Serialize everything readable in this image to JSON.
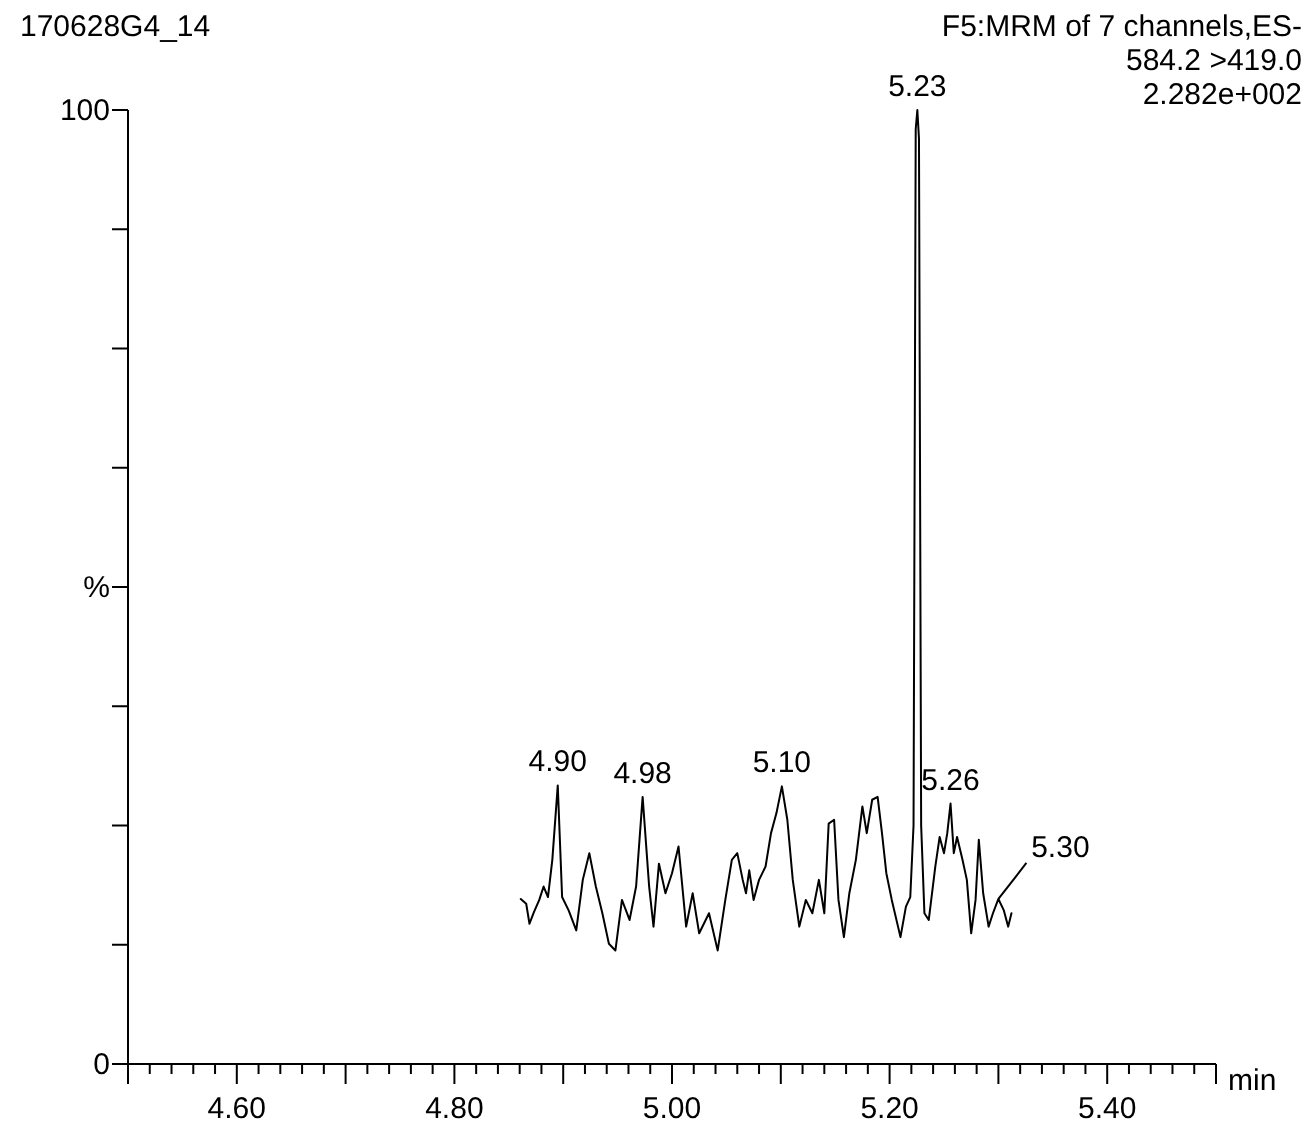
{
  "chart_data": {
    "type": "line",
    "title": "170628G4_14",
    "xlabel": "min",
    "xlim": [
      4.5,
      5.5
    ],
    "ylim": [
      0,
      100
    ],
    "xticks": [
      {
        "value": 4.5,
        "label": null
      },
      {
        "value": 4.52,
        "label": null
      },
      {
        "value": 4.54,
        "label": null
      },
      {
        "value": 4.56,
        "label": null
      },
      {
        "value": 4.58,
        "label": null
      },
      {
        "value": 4.6,
        "label": "4.60"
      },
      {
        "value": 4.62,
        "label": null
      },
      {
        "value": 4.64,
        "label": null
      },
      {
        "value": 4.66,
        "label": null
      },
      {
        "value": 4.68,
        "label": null
      },
      {
        "value": 4.7,
        "label": null
      },
      {
        "value": 4.72,
        "label": null
      },
      {
        "value": 4.74,
        "label": null
      },
      {
        "value": 4.76,
        "label": null
      },
      {
        "value": 4.78,
        "label": null
      },
      {
        "value": 4.8,
        "label": "4.80"
      },
      {
        "value": 4.82,
        "label": null
      },
      {
        "value": 4.84,
        "label": null
      },
      {
        "value": 4.86,
        "label": null
      },
      {
        "value": 4.88,
        "label": null
      },
      {
        "value": 4.9,
        "label": null
      },
      {
        "value": 4.92,
        "label": null
      },
      {
        "value": 4.94,
        "label": null
      },
      {
        "value": 4.96,
        "label": null
      },
      {
        "value": 4.98,
        "label": null
      },
      {
        "value": 5.0,
        "label": "5.00"
      },
      {
        "value": 5.02,
        "label": null
      },
      {
        "value": 5.04,
        "label": null
      },
      {
        "value": 5.06,
        "label": null
      },
      {
        "value": 5.08,
        "label": null
      },
      {
        "value": 5.1,
        "label": null
      },
      {
        "value": 5.12,
        "label": null
      },
      {
        "value": 5.14,
        "label": null
      },
      {
        "value": 5.16,
        "label": null
      },
      {
        "value": 5.18,
        "label": null
      },
      {
        "value": 5.2,
        "label": "5.20"
      },
      {
        "value": 5.22,
        "label": null
      },
      {
        "value": 5.24,
        "label": null
      },
      {
        "value": 5.26,
        "label": null
      },
      {
        "value": 5.28,
        "label": null
      },
      {
        "value": 5.3,
        "label": null
      },
      {
        "value": 5.32,
        "label": null
      },
      {
        "value": 5.34,
        "label": null
      },
      {
        "value": 5.36,
        "label": null
      },
      {
        "value": 5.38,
        "label": null
      },
      {
        "value": 5.4,
        "label": "5.40"
      },
      {
        "value": 5.42,
        "label": null
      },
      {
        "value": 5.44,
        "label": null
      },
      {
        "value": 5.46,
        "label": null
      },
      {
        "value": 5.48,
        "label": null
      },
      {
        "value": 5.5,
        "label": null
      }
    ],
    "yticks": [
      0,
      {
        "value": 12.5,
        "label": null
      },
      {
        "value": 25,
        "label": null
      },
      {
        "value": 37.5,
        "label": null
      },
      {
        "value": 50,
        "label": "%"
      },
      {
        "value": 62.5,
        "label": null
      },
      {
        "value": 75,
        "label": null
      },
      {
        "value": 87.5,
        "label": null
      },
      100
    ],
    "grid": false,
    "marker": "none",
    "line_style": "solid",
    "series": [
      {
        "color": "#000000",
        "x": [
          4.861,
          4.866,
          4.869,
          4.873,
          4.878,
          4.882,
          4.886,
          4.89,
          4.895,
          4.899,
          4.905,
          4.912,
          4.918,
          4.924,
          4.93,
          4.936,
          4.942,
          4.948,
          4.954,
          4.961,
          4.967,
          4.973,
          4.979,
          4.983,
          4.988,
          4.994,
          5.0,
          5.006,
          5.013,
          5.019,
          5.025,
          5.034,
          5.042,
          5.049,
          5.055,
          5.06,
          5.065,
          5.068,
          5.071,
          5.075,
          5.08,
          5.086,
          5.091,
          5.096,
          5.101,
          5.106,
          5.111,
          5.117,
          5.123,
          5.129,
          5.135,
          5.14,
          5.144,
          5.149,
          5.153,
          5.158,
          5.163,
          5.169,
          5.175,
          5.179,
          5.184,
          5.189,
          5.193,
          5.197,
          5.202,
          5.21,
          5.215,
          5.219,
          5.222,
          5.224,
          5.2255,
          5.227,
          5.229,
          5.232,
          5.236,
          5.242,
          5.246,
          5.25,
          5.253,
          5.256,
          5.259,
          5.262,
          5.267,
          5.271,
          5.275,
          5.279,
          5.282,
          5.286,
          5.291,
          5.295,
          5.3,
          5.305,
          5.309,
          5.312
        ],
        "values": [
          17.3,
          16.8,
          14.7,
          15.9,
          17.2,
          18.6,
          17.5,
          21.4,
          29.2,
          17.5,
          16.1,
          14.0,
          19.3,
          22.1,
          18.6,
          15.8,
          12.6,
          11.9,
          17.2,
          15.1,
          18.6,
          28.0,
          18.6,
          14.4,
          21.0,
          17.9,
          20.0,
          22.8,
          14.4,
          17.9,
          13.7,
          15.8,
          11.9,
          17.2,
          21.4,
          22.1,
          19.3,
          17.9,
          20.3,
          17.2,
          19.3,
          20.7,
          24.2,
          26.3,
          29.1,
          25.6,
          19.3,
          14.4,
          17.2,
          15.8,
          19.3,
          15.8,
          25.2,
          25.6,
          17.2,
          13.3,
          17.9,
          21.4,
          27.0,
          24.2,
          27.7,
          28.0,
          24.2,
          20.0,
          17.2,
          13.3,
          16.5,
          17.5,
          25,
          98,
          100,
          97,
          25,
          15.8,
          15.1,
          20.7,
          23.8,
          22.1,
          24.2,
          27.3,
          22.1,
          23.8,
          21.4,
          19.3,
          13.7,
          17.2,
          23.5,
          17.9,
          14.4,
          15.8,
          17.3,
          16.1,
          14.4,
          15.8
        ]
      }
    ],
    "annotations": [
      "F5:MRM of 7 channels,ES-",
      "584.2 >419.0",
      "2.282e+002",
      {
        "text": "4.90",
        "x": 4.895,
        "y": 29.2
      },
      {
        "text": "4.98",
        "x": 4.973,
        "y": 28.0
      },
      {
        "text": "5.10",
        "x": 5.101,
        "y": 29.1
      },
      {
        "text": "5.23",
        "x": 5.2255,
        "y": 100
      },
      {
        "text": "5.26",
        "x": 5.256,
        "y": 27.3
      },
      {
        "text": "5.30",
        "x": 5.3,
        "y": 17.3
      }
    ]
  }
}
